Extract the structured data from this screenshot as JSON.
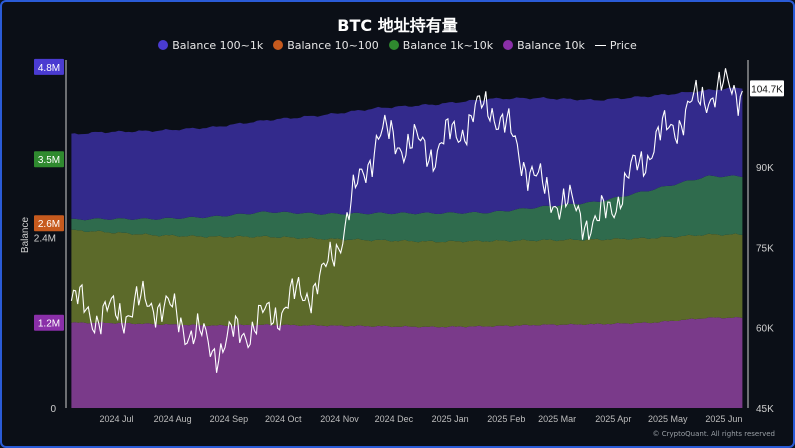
{
  "title": "BTC 地址持有量",
  "credit": "© CryptoQuant. All rights reserved",
  "colors": {
    "balance_100_1k": "#3b2f9e",
    "balance_10_100": "#c65a1e",
    "balance_1k_10k": "#2f8a2f",
    "balance_10k": "#8a2fa8",
    "price": "#ffffff"
  },
  "legend": [
    {
      "label": "Balance 100~1k",
      "color": "#4a3bd1",
      "kind": "dot"
    },
    {
      "label": "Balance 10~100",
      "color": "#c65a1e",
      "kind": "dot"
    },
    {
      "label": "Balance 1k~10k",
      "color": "#2f8a2f",
      "kind": "dot"
    },
    {
      "label": "Balance 10k",
      "color": "#8a2fa8",
      "kind": "dot"
    },
    {
      "label": "Price",
      "color": "#ffffff",
      "kind": "line"
    }
  ],
  "chart_data": {
    "type": "area",
    "title": "BTC 地址持有量",
    "ylabel": "Balance",
    "y_left_ticks": [
      "0",
      "1.2M",
      "2.4M",
      "3.5M",
      "4.8M"
    ],
    "y_left_ticks_values": [
      0,
      1200000,
      2400000,
      3500000,
      4800000
    ],
    "y_right_ticks": [
      "45K",
      "60K",
      "75K",
      "90K"
    ],
    "y_right_ticks_values": [
      45000,
      60000,
      75000,
      90000
    ],
    "ylim_left": [
      0,
      4800000
    ],
    "ylim_right": [
      45000,
      110000
    ],
    "x_ticks": [
      "2024 Jul",
      "2024 Aug",
      "2024 Sep",
      "2024 Oct",
      "2024 Nov",
      "2024 Dec",
      "2025 Jan",
      "2025 Feb",
      "2025 Mar",
      "2025 Apr",
      "2025 May",
      "2025 Jun"
    ],
    "x": [
      "2024-06-15",
      "2024-07-01",
      "2024-08-01",
      "2024-09-01",
      "2024-10-01",
      "2024-11-01",
      "2024-12-01",
      "2025-01-01",
      "2025-02-01",
      "2025-03-01",
      "2025-04-01",
      "2025-05-01",
      "2025-06-01",
      "2025-06-20"
    ],
    "series": [
      {
        "name": "Balance 10k",
        "axis": "left",
        "values": [
          1200000,
          1200000,
          1180000,
          1160000,
          1170000,
          1160000,
          1150000,
          1140000,
          1150000,
          1170000,
          1180000,
          1200000,
          1270000,
          1270000
        ]
      },
      {
        "name": "Balance 10~100",
        "axis": "left",
        "values": [
          1300000,
          1280000,
          1250000,
          1250000,
          1240000,
          1220000,
          1210000,
          1200000,
          1200000,
          1190000,
          1190000,
          1190000,
          1170000,
          1170000
        ]
      },
      {
        "name": "Balance 1k~10k",
        "axis": "left",
        "values": [
          150000,
          180000,
          230000,
          280000,
          350000,
          350000,
          380000,
          400000,
          400000,
          470000,
          530000,
          680000,
          820000,
          820000
        ]
      },
      {
        "name": "Balance 100~1k",
        "axis": "left",
        "values": [
          1200000,
          1220000,
          1240000,
          1260000,
          1290000,
          1390000,
          1480000,
          1530000,
          1600000,
          1530000,
          1430000,
          1320000,
          1210000,
          1250000
        ]
      },
      {
        "name": "Price",
        "axis": "right",
        "values": [
          65000,
          62000,
          65000,
          56000,
          62000,
          69000,
          96000,
          93000,
          102000,
          86000,
          79000,
          94000,
          104000,
          104700
        ]
      }
    ],
    "last_labels": {
      "right": "104.7K",
      "balance_10k": "1.2M",
      "balance_10_100": "2.6M",
      "balance_1k_10k": "3.5M",
      "balance_100_1k": "4.8M"
    }
  }
}
